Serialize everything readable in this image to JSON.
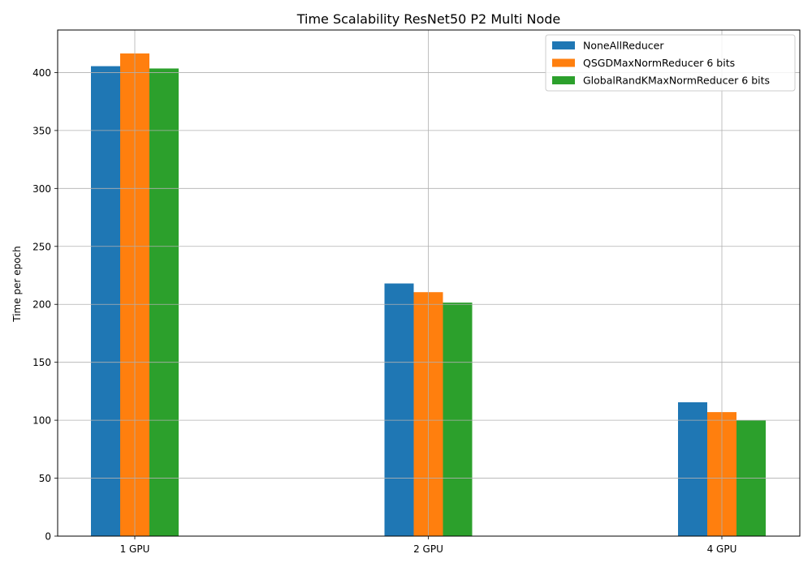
{
  "chart_data": {
    "type": "bar",
    "title": "Time Scalability ResNet50 P2 Multi Node",
    "xlabel": "",
    "ylabel": "Time per epoch",
    "categories": [
      "1 GPU",
      "2 GPU",
      "4 GPU"
    ],
    "series": [
      {
        "name": "NoneAllReducer",
        "values": [
          405.5,
          218,
          115.5
        ],
        "color": "#1f77b4"
      },
      {
        "name": "QSGDMaxNormReducer 6 bits",
        "values": [
          416.5,
          210.5,
          107
        ],
        "color": "#ff7f0e"
      },
      {
        "name": "GlobalRandKMaxNormReducer 6 bits",
        "values": [
          403.5,
          201.5,
          100
        ],
        "color": "#2ca02c"
      }
    ],
    "ylim": [
      0,
      436.7
    ],
    "yticks": [
      0,
      50,
      100,
      150,
      200,
      250,
      300,
      350,
      400
    ],
    "grid": true,
    "legend_position": "top-right"
  }
}
